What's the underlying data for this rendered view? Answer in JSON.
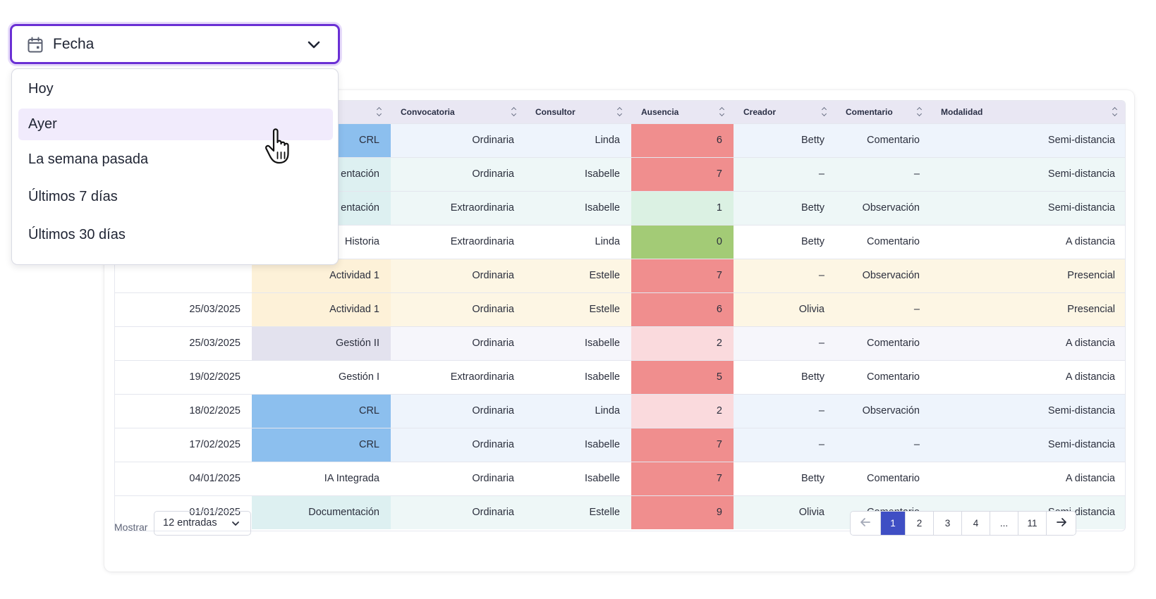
{
  "date_filter": {
    "label": "Fecha",
    "options": [
      {
        "label": "Hoy",
        "hovered": false
      },
      {
        "label": "Ayer",
        "hovered": true
      },
      {
        "label": "La semana pasada",
        "hovered": false
      },
      {
        "label": "Últimos 7 días",
        "hovered": false
      },
      {
        "label": "Últimos 30 días",
        "hovered": false
      }
    ]
  },
  "table": {
    "columns": [
      "",
      "",
      "Convocatoria",
      "Consultor",
      "Ausencia",
      "Creador",
      "Comentario",
      "Modalidad"
    ],
    "rows": [
      {
        "fecha": "",
        "actividad": "CRL",
        "convocatoria": "Ordinaria",
        "consultor": "Linda",
        "ausencia": "6",
        "creador": "Betty",
        "comentario": "Comentario",
        "modalidad": "Semi-distancia",
        "row_style": "blue",
        "act_style": "blue",
        "abs_style": "red"
      },
      {
        "fecha": "",
        "actividad": "entación",
        "convocatoria": "Ordinaria",
        "consultor": "Isabelle",
        "ausencia": "7",
        "creador": "–",
        "comentario": "–",
        "modalidad": "Semi-distancia",
        "row_style": "teal",
        "act_style": "teal",
        "abs_style": "red"
      },
      {
        "fecha": "",
        "actividad": "entación",
        "convocatoria": "Extraordinaria",
        "consultor": "Isabelle",
        "ausencia": "1",
        "creador": "Betty",
        "comentario": "Observación",
        "modalidad": "Semi-distancia",
        "row_style": "teal",
        "act_style": "teal",
        "abs_style": "mint"
      },
      {
        "fecha": "",
        "actividad": "Historia",
        "convocatoria": "Extraordinaria",
        "consultor": "Linda",
        "ausencia": "0",
        "creador": "Betty",
        "comentario": "Comentario",
        "modalidad": "A distancia",
        "row_style": "white",
        "act_style": "white",
        "abs_style": "green"
      },
      {
        "fecha": "",
        "actividad": "Actividad 1",
        "convocatoria": "Ordinaria",
        "consultor": "Estelle",
        "ausencia": "7",
        "creador": "–",
        "comentario": "Observación",
        "modalidad": "Presencial",
        "row_style": "yellow",
        "act_style": "yellow",
        "abs_style": "red"
      },
      {
        "fecha": "25/03/2025",
        "actividad": "Actividad 1",
        "convocatoria": "Ordinaria",
        "consultor": "Estelle",
        "ausencia": "6",
        "creador": "Olivia",
        "comentario": "–",
        "modalidad": "Presencial",
        "row_style": "yellow",
        "act_style": "yellow",
        "abs_style": "red"
      },
      {
        "fecha": "25/03/2025",
        "actividad": "Gestión II",
        "convocatoria": "Ordinaria",
        "consultor": "Isabelle",
        "ausencia": "2",
        "creador": "–",
        "comentario": "Comentario",
        "modalidad": "A distancia",
        "row_style": "gray",
        "act_style": "gray",
        "abs_style": "pink"
      },
      {
        "fecha": "19/02/2025",
        "actividad": "Gestión I",
        "convocatoria": "Extraordinaria",
        "consultor": "Isabelle",
        "ausencia": "5",
        "creador": "Betty",
        "comentario": "Comentario",
        "modalidad": "A distancia",
        "row_style": "white",
        "act_style": "white",
        "abs_style": "red"
      },
      {
        "fecha": "18/02/2025",
        "actividad": "CRL",
        "convocatoria": "Ordinaria",
        "consultor": "Linda",
        "ausencia": "2",
        "creador": "–",
        "comentario": "Observación",
        "modalidad": "Semi-distancia",
        "row_style": "blue",
        "act_style": "blue",
        "abs_style": "pink"
      },
      {
        "fecha": "17/02/2025",
        "actividad": "CRL",
        "convocatoria": "Ordinaria",
        "consultor": "Isabelle",
        "ausencia": "7",
        "creador": "–",
        "comentario": "–",
        "modalidad": "Semi-distancia",
        "row_style": "blue",
        "act_style": "blue",
        "abs_style": "red"
      },
      {
        "fecha": "04/01/2025",
        "actividad": "IA Integrada",
        "convocatoria": "Ordinaria",
        "consultor": "Isabelle",
        "ausencia": "7",
        "creador": "Betty",
        "comentario": "Comentario",
        "modalidad": "A distancia",
        "row_style": "white",
        "act_style": "white",
        "abs_style": "red"
      },
      {
        "fecha": "01/01/2025",
        "actividad": "Documentación",
        "convocatoria": "Ordinaria",
        "consultor": "Estelle",
        "ausencia": "9",
        "creador": "Olivia",
        "comentario": "Comentario",
        "modalidad": "Semi-distancia",
        "row_style": "teal",
        "act_style": "teal",
        "abs_style": "red"
      }
    ]
  },
  "footer": {
    "show_label": "Mostrar",
    "entries_value": "12 entradas",
    "pages": [
      "1",
      "2",
      "3",
      "4",
      "...",
      "11"
    ],
    "active_page": "1"
  },
  "colors": {
    "accent": "#6a2fd4",
    "active_page": "#3f4fc4",
    "absence_high": "#f08e8e",
    "absence_low": "#fadadd",
    "absence_zero": "#a3cb76"
  },
  "icons": [
    "calendar-icon",
    "chevron-down-icon",
    "sort-icon",
    "arrow-left-icon",
    "arrow-right-icon",
    "hand-pointer-cursor"
  ]
}
